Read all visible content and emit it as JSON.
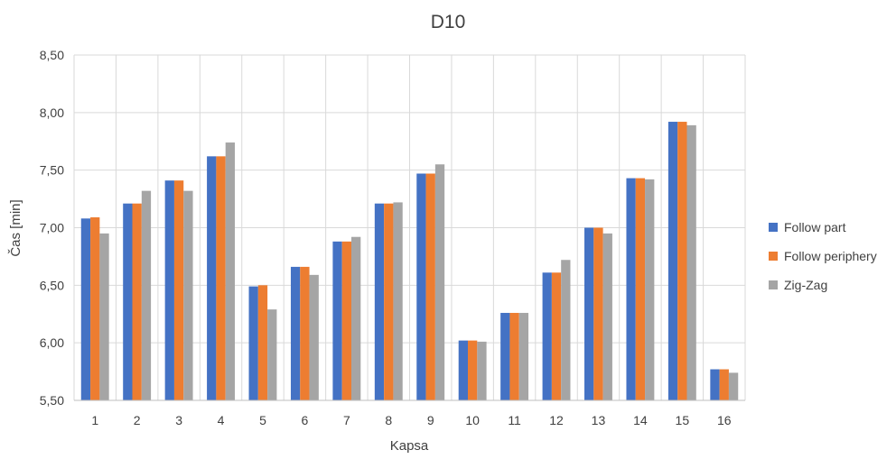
{
  "chart_data": {
    "type": "bar",
    "title": "D10",
    "xlabel": "Kapsa",
    "ylabel": "Čas [min]",
    "ylim": [
      5.5,
      8.5
    ],
    "yticks": [
      "5,50",
      "6,00",
      "6,50",
      "7,00",
      "7,50",
      "8,00",
      "8,50"
    ],
    "yticks_values": [
      5.5,
      6.0,
      6.5,
      7.0,
      7.5,
      8.0,
      8.5
    ],
    "grid": true,
    "legend_position": "right",
    "categories": [
      "1",
      "2",
      "3",
      "4",
      "5",
      "6",
      "7",
      "8",
      "9",
      "10",
      "11",
      "12",
      "13",
      "14",
      "15",
      "16"
    ],
    "series": [
      {
        "name": "Follow part",
        "color": "#4472C4",
        "values": [
          7.08,
          7.21,
          7.41,
          7.62,
          6.49,
          6.66,
          6.88,
          7.21,
          7.47,
          6.02,
          6.26,
          6.61,
          7.0,
          7.43,
          7.92,
          5.77
        ]
      },
      {
        "name": "Follow periphery",
        "color": "#ED7D31",
        "values": [
          7.09,
          7.21,
          7.41,
          7.62,
          6.5,
          6.66,
          6.88,
          7.21,
          7.47,
          6.02,
          6.26,
          6.61,
          7.0,
          7.43,
          7.92,
          5.77
        ]
      },
      {
        "name": "Zig-Zag",
        "color": "#A5A5A5",
        "values": [
          6.95,
          7.32,
          7.32,
          7.74,
          6.29,
          6.59,
          6.92,
          7.22,
          7.55,
          6.01,
          6.26,
          6.72,
          6.95,
          7.42,
          7.89,
          5.74
        ]
      }
    ]
  }
}
